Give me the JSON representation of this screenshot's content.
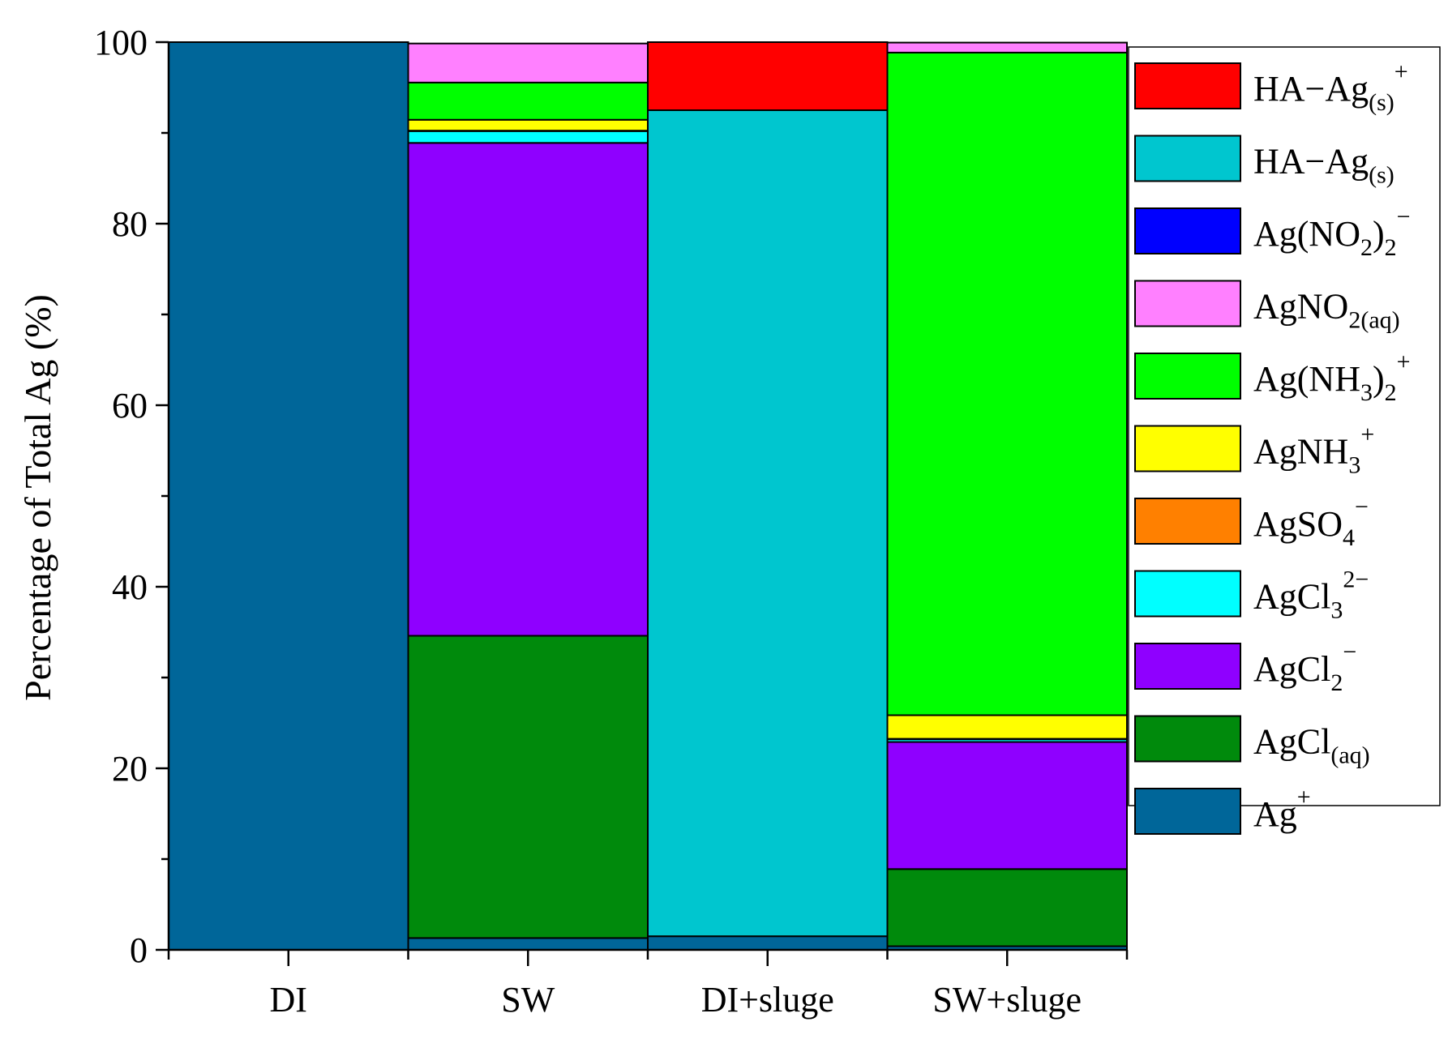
{
  "chart_data": {
    "type": "bar",
    "stacked": true,
    "title": "",
    "xlabel": "",
    "ylabel": "Percentage of Total Ag (%)",
    "ylim": [
      0,
      100
    ],
    "yticks": [
      "0",
      "20",
      "40",
      "60",
      "80",
      "100"
    ],
    "categories": [
      "DI",
      "SW",
      "DI+sluge",
      "SW+sluge"
    ],
    "legend_position": "right",
    "series": [
      {
        "name": "Ag+",
        "color": "#006699",
        "values": [
          100,
          1.3,
          1.5,
          0.4
        ]
      },
      {
        "name": "AgCl(aq)",
        "color": "#008A0C",
        "values": [
          0,
          33.3,
          0,
          8.5
        ]
      },
      {
        "name": "AgCl2−",
        "color": "#8F00FF",
        "values": [
          0,
          54.3,
          0,
          14.0
        ]
      },
      {
        "name": "AgCl32−",
        "color": "#00FFFF",
        "values": [
          0,
          1.3,
          0,
          0.3
        ]
      },
      {
        "name": "AgSO4−",
        "color": "#FF8000",
        "values": [
          0,
          0.05,
          0,
          0.05
        ]
      },
      {
        "name": "AgNH3+",
        "color": "#FFFF00",
        "values": [
          0,
          1.2,
          0,
          2.6
        ]
      },
      {
        "name": "Ag(NH3)2+",
        "color": "#00FF00",
        "values": [
          0,
          4.1,
          0,
          73.0
        ]
      },
      {
        "name": "AgNO2(aq)",
        "color": "#FF80FF",
        "values": [
          0,
          4.3,
          0,
          1.1
        ]
      },
      {
        "name": "Ag(NO2)2−",
        "color": "#0000FF",
        "values": [
          0,
          0,
          0,
          0
        ]
      },
      {
        "name": "HA−Ag(s)",
        "color": "#00C6CF",
        "values": [
          0,
          0,
          91.0,
          0
        ]
      },
      {
        "name": "HA−Ag+(s)",
        "color": "#FF0000",
        "values": [
          0,
          0,
          7.5,
          0
        ]
      }
    ],
    "legend": [
      {
        "base": "HA−Ag",
        "sup": "+",
        "sub": "(s)",
        "color": "#FF0000"
      },
      {
        "base": "HA−Ag",
        "sup": "",
        "sub": "(s)",
        "color": "#00C6CF"
      },
      {
        "base": "Ag(NO",
        "sub": "2",
        "tail": ")",
        "sub2": "2",
        "sup": "−",
        "color": "#0000FF"
      },
      {
        "base": "AgNO",
        "sub": "2(aq)",
        "sup": "",
        "color": "#FF80FF"
      },
      {
        "base": "Ag(NH",
        "sub": "3",
        "tail": ")",
        "sub2": "2",
        "sup": "+",
        "color": "#00FF00"
      },
      {
        "base": "AgNH",
        "sub": "3",
        "sup": "+",
        "color": "#FFFF00"
      },
      {
        "base": "AgSO",
        "sub": "4",
        "sup": "−",
        "color": "#FF8000"
      },
      {
        "base": "AgCl",
        "sub": "3",
        "sup": "2−",
        "color": "#00FFFF"
      },
      {
        "base": "AgCl",
        "sub": "2",
        "sup": "−",
        "color": "#8F00FF"
      },
      {
        "base": "AgCl",
        "sub": "(aq)",
        "sup": "",
        "color": "#008A0C"
      },
      {
        "base": "Ag",
        "sub": "",
        "sup": "+",
        "color": "#006699"
      }
    ]
  }
}
